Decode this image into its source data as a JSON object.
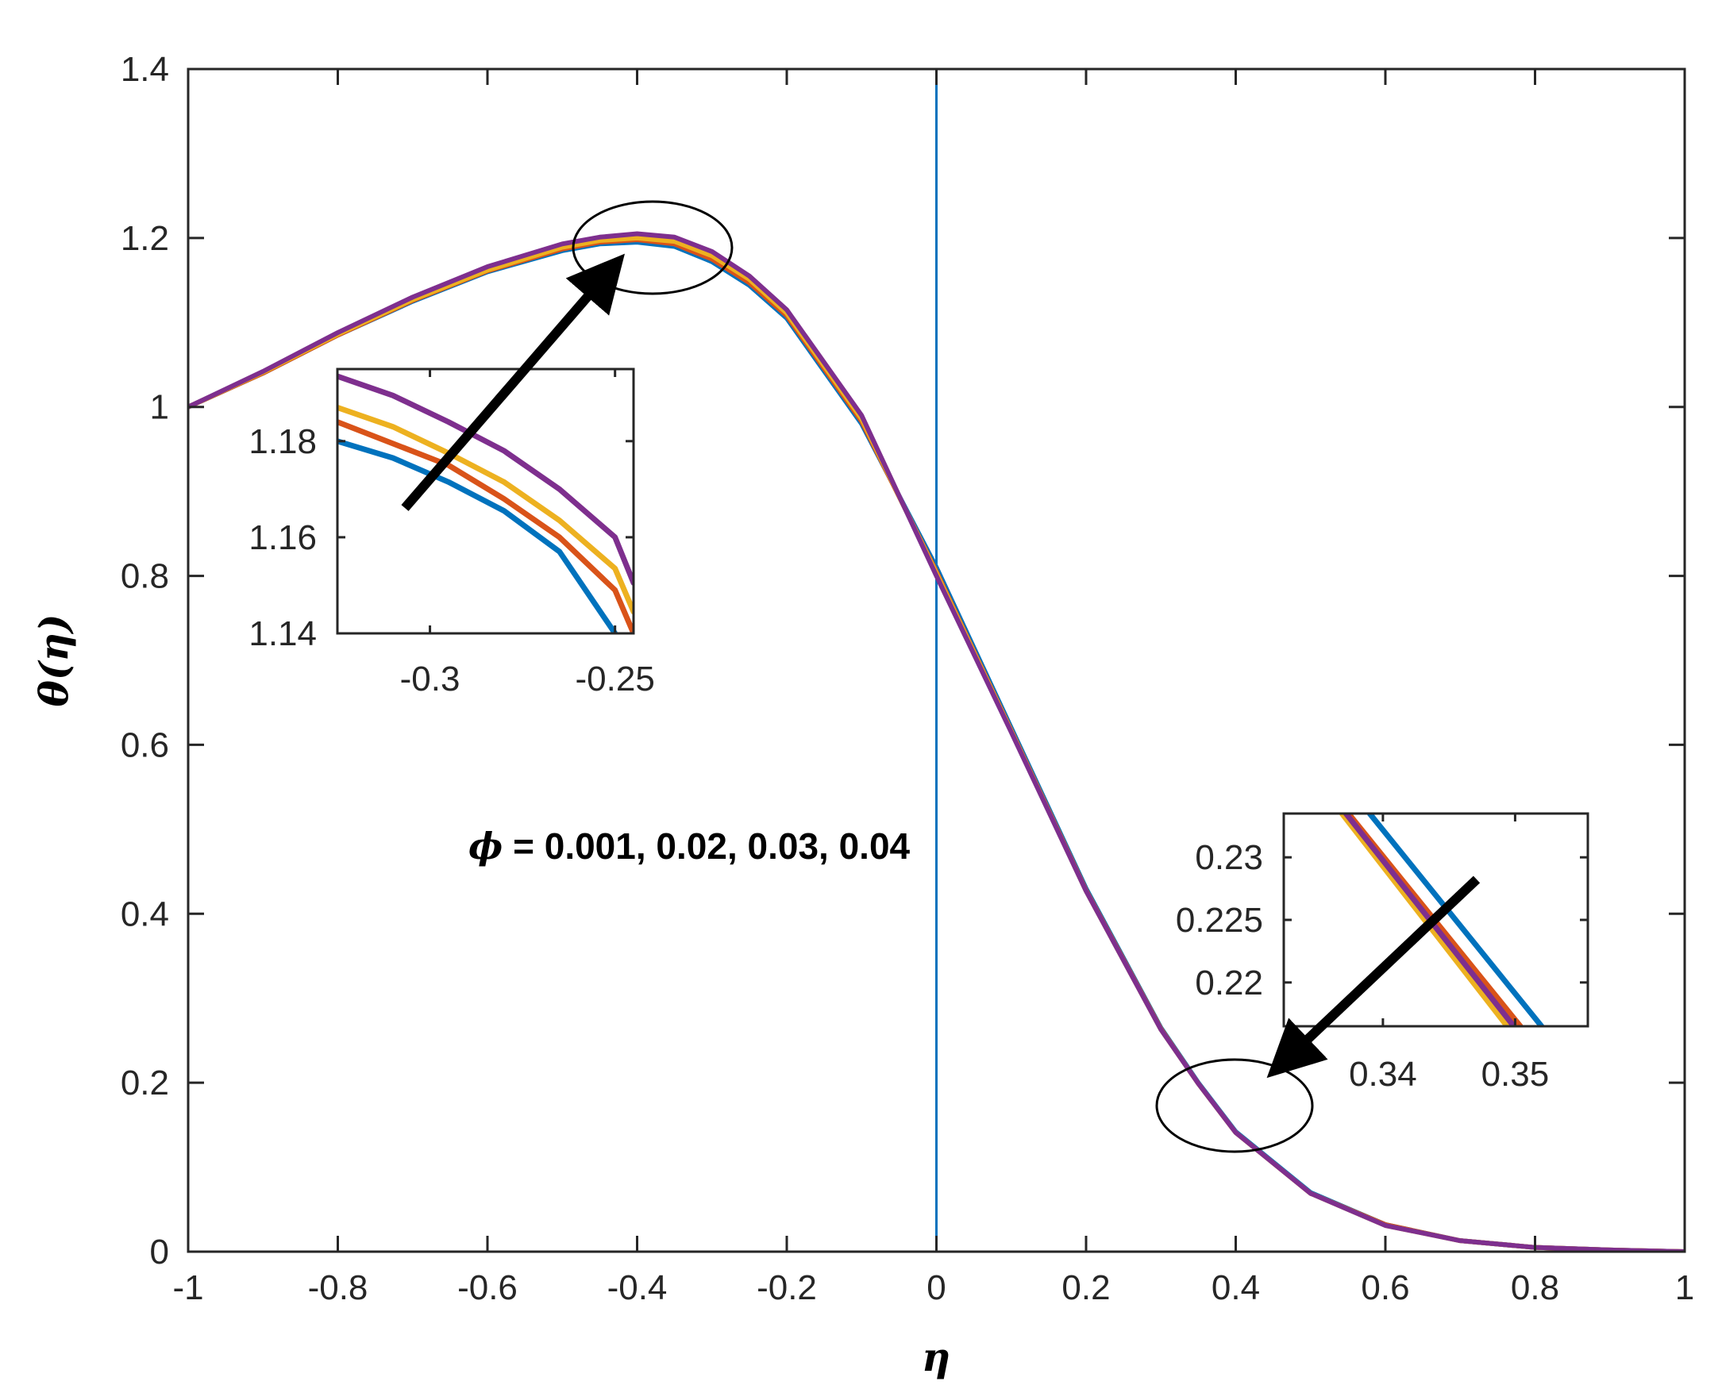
{
  "chart_data": {
    "type": "line",
    "xlabel": "η",
    "ylabel": "θ(η)",
    "xlim": [
      -1,
      1
    ],
    "ylim": [
      0,
      1.4
    ],
    "x_ticks": [
      "-1",
      "-0.8",
      "-0.6",
      "-0.4",
      "-0.2",
      "0",
      "0.2",
      "0.4",
      "0.6",
      "0.8",
      "1"
    ],
    "y_ticks": [
      "0",
      "0.2",
      "0.4",
      "0.6",
      "0.8",
      "1",
      "1.2",
      "1.4"
    ],
    "grid": false,
    "vertical_reference_line": {
      "x": 0,
      "color": "#0072BD"
    },
    "annotation": {
      "symbol": "ϕ",
      "text": " = 0.001, 0.02, 0.03, 0.04"
    },
    "series": [
      {
        "color": "#0072BD",
        "x": [
          -1,
          -0.9,
          -0.8,
          -0.7,
          -0.6,
          -0.5,
          -0.45,
          -0.4,
          -0.35,
          -0.3,
          -0.25,
          -0.2,
          -0.1,
          0,
          0.1,
          0.2,
          0.3,
          0.35,
          0.4,
          0.5,
          0.6,
          0.7,
          0.8,
          0.9,
          1
        ],
        "y": [
          1.0,
          1.04,
          1.085,
          1.125,
          1.16,
          1.185,
          1.193,
          1.195,
          1.19,
          1.172,
          1.144,
          1.105,
          0.98,
          0.81,
          0.62,
          0.43,
          0.265,
          0.2,
          0.142,
          0.07,
          0.032,
          0.013,
          0.005,
          0.002,
          0.0
        ]
      },
      {
        "color": "#D95319",
        "x": [
          -1,
          -0.9,
          -0.8,
          -0.7,
          -0.6,
          -0.5,
          -0.45,
          -0.4,
          -0.35,
          -0.3,
          -0.25,
          -0.2,
          -0.1,
          0,
          0.1,
          0.2,
          0.3,
          0.35,
          0.4,
          0.5,
          0.6,
          0.7,
          0.8,
          0.9,
          1
        ],
        "y": [
          1.0,
          1.04,
          1.085,
          1.126,
          1.161,
          1.187,
          1.195,
          1.198,
          1.193,
          1.175,
          1.147,
          1.108,
          0.983,
          0.805,
          0.617,
          0.428,
          0.264,
          0.199,
          0.141,
          0.069,
          0.032,
          0.013,
          0.005,
          0.002,
          0.0
        ]
      },
      {
        "color": "#EDB120",
        "x": [
          -1,
          -0.9,
          -0.8,
          -0.7,
          -0.6,
          -0.5,
          -0.45,
          -0.4,
          -0.35,
          -0.3,
          -0.25,
          -0.2,
          -0.1,
          0,
          0.1,
          0.2,
          0.3,
          0.35,
          0.4,
          0.5,
          0.6,
          0.7,
          0.8,
          0.9,
          1
        ],
        "y": [
          1.0,
          1.041,
          1.086,
          1.127,
          1.162,
          1.189,
          1.197,
          1.2,
          1.196,
          1.179,
          1.151,
          1.111,
          0.986,
          0.803,
          0.616,
          0.427,
          0.263,
          0.199,
          0.141,
          0.069,
          0.031,
          0.013,
          0.005,
          0.002,
          0.0
        ]
      },
      {
        "color": "#7E2F8E",
        "x": [
          -1,
          -0.9,
          -0.8,
          -0.7,
          -0.6,
          -0.5,
          -0.45,
          -0.4,
          -0.35,
          -0.3,
          -0.25,
          -0.2,
          -0.1,
          0,
          0.1,
          0.2,
          0.3,
          0.35,
          0.4,
          0.5,
          0.6,
          0.7,
          0.8,
          0.9,
          1
        ],
        "y": [
          1.0,
          1.042,
          1.088,
          1.13,
          1.166,
          1.193,
          1.201,
          1.205,
          1.201,
          1.184,
          1.155,
          1.115,
          0.99,
          0.8,
          0.615,
          0.427,
          0.263,
          0.199,
          0.141,
          0.069,
          0.031,
          0.013,
          0.005,
          0.002,
          0.0
        ]
      }
    ],
    "insets": [
      {
        "name": "inset-peak",
        "xlim": [
          -0.325,
          -0.245
        ],
        "ylim": [
          1.14,
          1.195
        ],
        "x_ticks": [
          "-0.3",
          "-0.25"
        ],
        "y_ticks": [
          "1.14",
          "1.16",
          "1.18"
        ],
        "series": [
          {
            "color": "#0072BD",
            "x": [
              -0.325,
              -0.31,
              -0.295,
              -0.28,
              -0.265,
              -0.25
            ],
            "y": [
              1.18,
              1.1765,
              1.1715,
              1.1655,
              1.157,
              1.14
            ]
          },
          {
            "color": "#D95319",
            "x": [
              -0.325,
              -0.31,
              -0.295,
              -0.28,
              -0.265,
              -0.25,
              -0.245
            ],
            "y": [
              1.184,
              1.1795,
              1.175,
              1.168,
              1.16,
              1.149,
              1.14
            ]
          },
          {
            "color": "#EDB120",
            "x": [
              -0.325,
              -0.31,
              -0.295,
              -0.28,
              -0.265,
              -0.25,
              -0.245
            ],
            "y": [
              1.187,
              1.183,
              1.1775,
              1.1715,
              1.1635,
              1.1535,
              1.1445
            ]
          },
          {
            "color": "#7E2F8E",
            "x": [
              -0.325,
              -0.31,
              -0.295,
              -0.28,
              -0.265,
              -0.25,
              -0.245
            ],
            "y": [
              1.1935,
              1.1895,
              1.184,
              1.178,
              1.17,
              1.16,
              1.1505
            ]
          }
        ]
      },
      {
        "name": "inset-tail",
        "xlim": [
          0.3325,
          0.3555
        ],
        "ylim": [
          0.2165,
          0.2335
        ],
        "x_ticks": [
          "0.34",
          "0.35"
        ],
        "y_ticks": [
          "0.22",
          "0.225",
          "0.23"
        ],
        "series": [
          {
            "color": "#0072BD",
            "x": [
              0.339,
              0.352
            ],
            "y": [
              0.2335,
              0.2165
            ]
          },
          {
            "color": "#D95319",
            "x": [
              0.3374,
              0.3504
            ],
            "y": [
              0.2335,
              0.2165
            ]
          },
          {
            "color": "#EDB120",
            "x": [
              0.3369,
              0.3494
            ],
            "y": [
              0.2335,
              0.2165
            ]
          },
          {
            "color": "#7E2F8E",
            "x": [
              0.3372,
              0.3499
            ],
            "y": [
              0.2335,
              0.2165
            ]
          }
        ]
      }
    ]
  }
}
